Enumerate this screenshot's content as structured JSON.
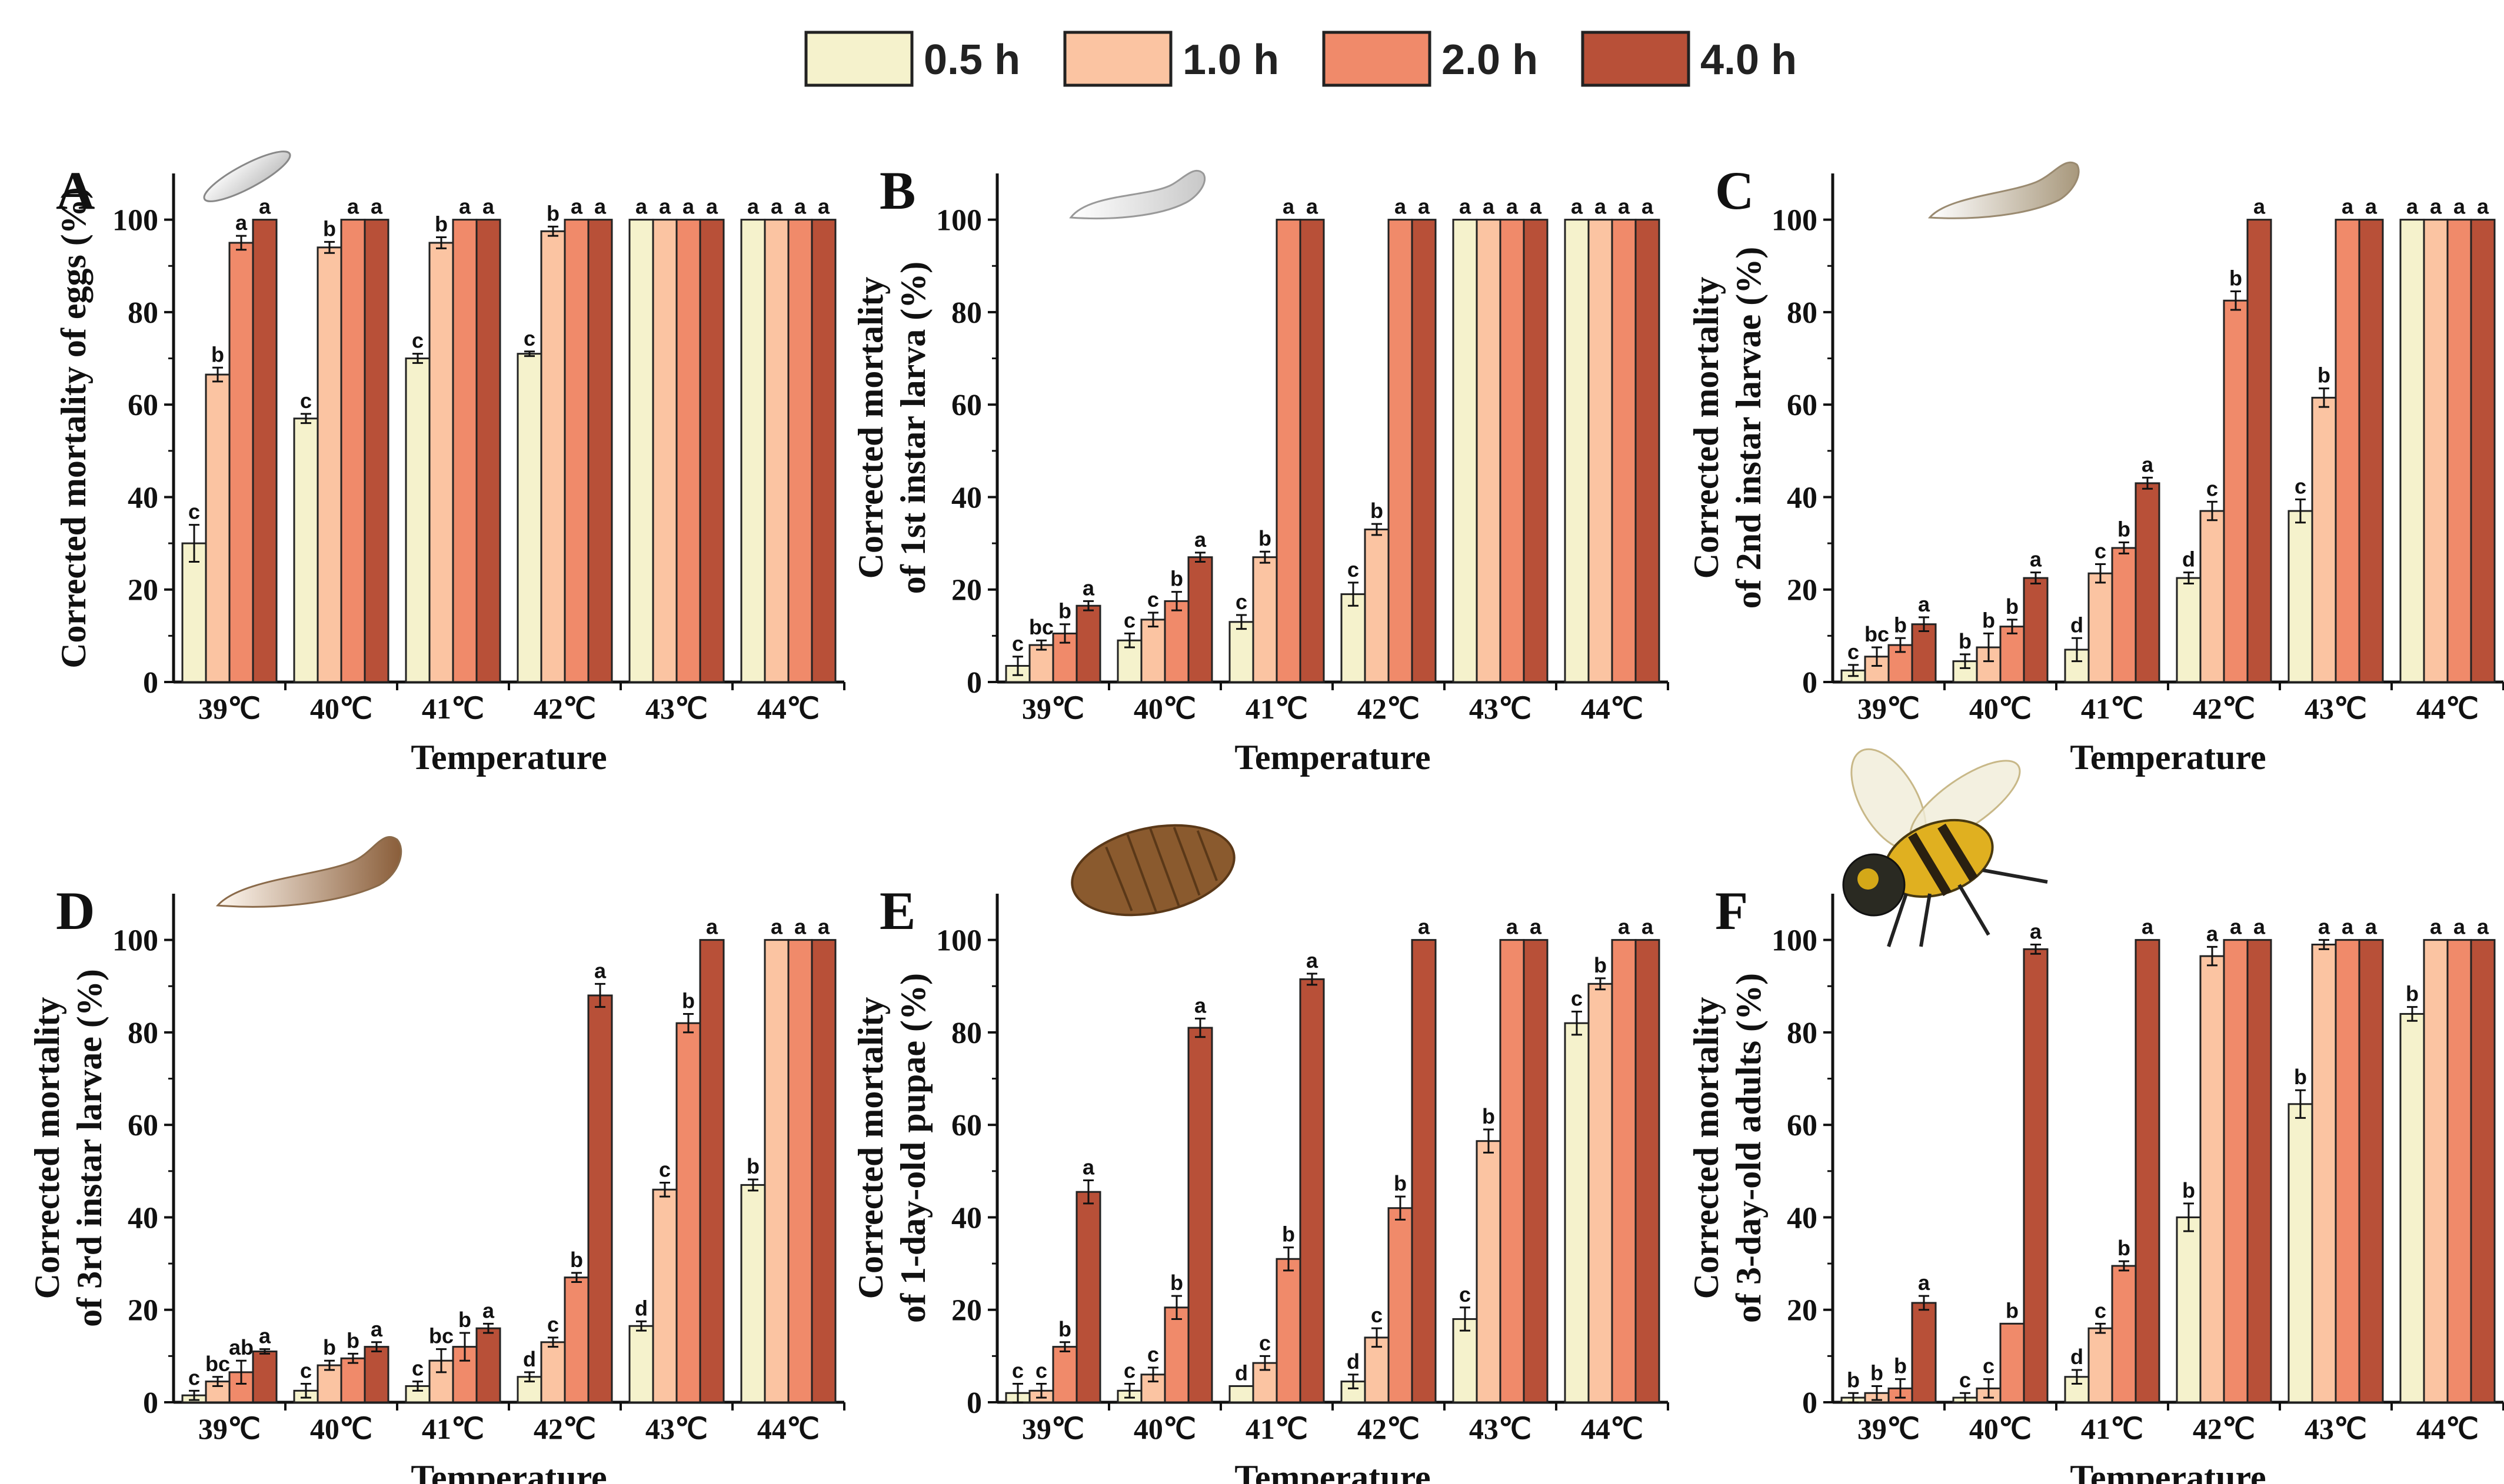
{
  "legend": [
    {
      "label": "0.5 h",
      "color": "#f5f2cc"
    },
    {
      "label": "1.0 h",
      "color": "#fbc4a2"
    },
    {
      "label": "2.0 h",
      "color": "#f08a6a"
    },
    {
      "label": "4.0 h",
      "color": "#b85038"
    }
  ],
  "chart_data": [
    {
      "panel": "A",
      "type": "bar",
      "icon": "egg-icon",
      "ylabel_lines": [
        "Corrected mortality of eggs (%)"
      ],
      "xlabel": "Temperature",
      "categories": [
        "39℃",
        "40℃",
        "41℃",
        "42℃",
        "43℃",
        "44℃"
      ],
      "ylim": [
        0,
        110
      ],
      "yticks": [
        "0",
        "20",
        "40",
        "60",
        "80",
        "100"
      ],
      "series": [
        {
          "name": "0.5 h",
          "values": [
            30,
            57,
            70,
            71,
            100,
            100
          ],
          "errors": [
            4,
            1,
            1,
            0.5,
            0,
            0
          ],
          "sig": [
            "c",
            "c",
            "c",
            "c",
            "a",
            "a"
          ]
        },
        {
          "name": "1.0 h",
          "values": [
            66.5,
            94,
            95,
            97.5,
            100,
            100
          ],
          "errors": [
            1.5,
            1.2,
            1.2,
            1,
            0,
            0
          ],
          "sig": [
            "b",
            "b",
            "b",
            "b",
            "a",
            "a"
          ]
        },
        {
          "name": "2.0 h",
          "values": [
            95,
            100,
            100,
            100,
            100,
            100
          ],
          "errors": [
            1.5,
            0,
            0,
            0,
            0,
            0
          ],
          "sig": [
            "a",
            "a",
            "a",
            "a",
            "a",
            "a"
          ]
        },
        {
          "name": "4.0 h",
          "values": [
            100,
            100,
            100,
            100,
            100,
            100
          ],
          "errors": [
            0,
            0,
            0,
            0,
            0,
            0
          ],
          "sig": [
            "a",
            "a",
            "a",
            "a",
            "a",
            "a"
          ]
        }
      ]
    },
    {
      "panel": "B",
      "type": "bar",
      "icon": "first-instar-larva-icon",
      "ylabel_lines": [
        "Corrected mortality",
        "of 1st instar larva (%)"
      ],
      "xlabel": "Temperature",
      "categories": [
        "39℃",
        "40℃",
        "41℃",
        "42℃",
        "43℃",
        "44℃"
      ],
      "ylim": [
        0,
        110
      ],
      "yticks": [
        "0",
        "20",
        "40",
        "60",
        "80",
        "100"
      ],
      "series": [
        {
          "name": "0.5 h",
          "values": [
            3.5,
            9,
            13,
            19,
            100,
            100
          ],
          "errors": [
            2,
            1.5,
            1.5,
            2.5,
            0,
            0
          ],
          "sig": [
            "c",
            "c",
            "c",
            "c",
            "a",
            "a"
          ]
        },
        {
          "name": "1.0 h",
          "values": [
            8,
            13.5,
            27,
            33,
            100,
            100
          ],
          "errors": [
            1,
            1.5,
            1.2,
            1.2,
            0,
            0
          ],
          "sig": [
            "bc",
            "c",
            "b",
            "b",
            "a",
            "a"
          ]
        },
        {
          "name": "2.0 h",
          "values": [
            10.5,
            17.5,
            100,
            100,
            100,
            100
          ],
          "errors": [
            2,
            2,
            0,
            0,
            0,
            0
          ],
          "sig": [
            "b",
            "b",
            "a",
            "a",
            "a",
            "a"
          ]
        },
        {
          "name": "4.0 h",
          "values": [
            16.5,
            27,
            100,
            100,
            100,
            100
          ],
          "errors": [
            1,
            1,
            0,
            0,
            0,
            0
          ],
          "sig": [
            "a",
            "a",
            "a",
            "a",
            "a",
            "a"
          ]
        }
      ]
    },
    {
      "panel": "C",
      "type": "bar",
      "icon": "second-instar-larva-icon",
      "ylabel_lines": [
        "Corrected mortality",
        "of 2nd instar larvae (%)"
      ],
      "xlabel": "Temperature",
      "categories": [
        "39℃",
        "40℃",
        "41℃",
        "42℃",
        "43℃",
        "44℃"
      ],
      "ylim": [
        0,
        110
      ],
      "yticks": [
        "0",
        "20",
        "40",
        "60",
        "80",
        "100"
      ],
      "series": [
        {
          "name": "0.5 h",
          "values": [
            2.5,
            4.5,
            7,
            22.5,
            37,
            100
          ],
          "errors": [
            1.2,
            1.5,
            2.5,
            1.2,
            2.5,
            0
          ],
          "sig": [
            "c",
            "b",
            "d",
            "d",
            "c",
            "a"
          ]
        },
        {
          "name": "1.0 h",
          "values": [
            5.5,
            7.5,
            23.5,
            37,
            61.5,
            100
          ],
          "errors": [
            2,
            3,
            2,
            2,
            2,
            0
          ],
          "sig": [
            "bc",
            "b",
            "c",
            "c",
            "b",
            "a"
          ]
        },
        {
          "name": "2.0 h",
          "values": [
            8,
            12,
            29,
            82.5,
            100,
            100
          ],
          "errors": [
            1.5,
            1.5,
            1.2,
            2,
            0,
            0
          ],
          "sig": [
            "b",
            "b",
            "b",
            "b",
            "a",
            "a"
          ]
        },
        {
          "name": "4.0 h",
          "values": [
            12.5,
            22.5,
            43,
            100,
            100,
            100
          ],
          "errors": [
            1.5,
            1.2,
            1.2,
            0,
            0,
            0
          ],
          "sig": [
            "a",
            "a",
            "a",
            "a",
            "a",
            "a"
          ]
        }
      ]
    },
    {
      "panel": "D",
      "type": "bar",
      "icon": "third-instar-larva-icon",
      "ylabel_lines": [
        "Corrected mortality",
        "of 3rd instar larvae (%)"
      ],
      "xlabel": "Temperature",
      "categories": [
        "39℃",
        "40℃",
        "41℃",
        "42℃",
        "43℃",
        "44℃"
      ],
      "ylim": [
        0,
        110
      ],
      "yticks": [
        "0",
        "20",
        "40",
        "60",
        "80",
        "100"
      ],
      "series": [
        {
          "name": "0.5 h",
          "values": [
            1.5,
            2.5,
            3.5,
            5.5,
            16.5,
            47
          ],
          "errors": [
            1,
            1.5,
            1,
            1,
            1,
            1.2
          ],
          "sig": [
            "c",
            "c",
            "c",
            "d",
            "d",
            "b"
          ]
        },
        {
          "name": "1.0 h",
          "values": [
            4.5,
            8,
            9,
            13,
            46,
            100
          ],
          "errors": [
            1,
            1,
            2.5,
            1,
            1.5,
            0
          ],
          "sig": [
            "bc",
            "b",
            "bc",
            "c",
            "c",
            "a"
          ]
        },
        {
          "name": "2.0 h",
          "values": [
            6.5,
            9.5,
            12,
            27,
            82,
            100
          ],
          "errors": [
            2.5,
            1,
            3,
            1,
            2,
            0
          ],
          "sig": [
            "ab",
            "b",
            "b",
            "b",
            "b",
            "a"
          ]
        },
        {
          "name": "4.0 h",
          "values": [
            11,
            12,
            16,
            88,
            100,
            100
          ],
          "errors": [
            0.5,
            1,
            1,
            2.5,
            0,
            0
          ],
          "sig": [
            "a",
            "a",
            "a",
            "a",
            "a",
            "a"
          ]
        }
      ]
    },
    {
      "panel": "E",
      "type": "bar",
      "icon": "pupa-icon",
      "ylabel_lines": [
        "Corrected mortality",
        "of 1-day-old pupae (%)"
      ],
      "xlabel": "Temperature",
      "categories": [
        "39℃",
        "40℃",
        "41℃",
        "42℃",
        "43℃",
        "44℃"
      ],
      "ylim": [
        0,
        110
      ],
      "yticks": [
        "0",
        "20",
        "40",
        "60",
        "80",
        "100"
      ],
      "series": [
        {
          "name": "0.5 h",
          "values": [
            2,
            2.5,
            3.5,
            4.5,
            18,
            82
          ],
          "errors": [
            2,
            1.5,
            0,
            1.5,
            2.5,
            2.5
          ],
          "sig": [
            "c",
            "c",
            "d",
            "d",
            "c",
            "c"
          ]
        },
        {
          "name": "1.0 h",
          "values": [
            2.5,
            6,
            8.5,
            14,
            56.5,
            90.5
          ],
          "errors": [
            1.5,
            1.5,
            1.5,
            2,
            2.5,
            1.2
          ],
          "sig": [
            "c",
            "c",
            "c",
            "c",
            "b",
            "b"
          ]
        },
        {
          "name": "2.0 h",
          "values": [
            12,
            20.5,
            31,
            42,
            100,
            100
          ],
          "errors": [
            1,
            2.5,
            2.5,
            2.5,
            0,
            0
          ],
          "sig": [
            "b",
            "b",
            "b",
            "b",
            "a",
            "a"
          ]
        },
        {
          "name": "4.0 h",
          "values": [
            45.5,
            81,
            91.5,
            100,
            100,
            100
          ],
          "errors": [
            2.5,
            2,
            1.2,
            0,
            0,
            0
          ],
          "sig": [
            "a",
            "a",
            "a",
            "a",
            "a",
            "a"
          ]
        }
      ]
    },
    {
      "panel": "F",
      "type": "bar",
      "icon": "adult-fly-icon",
      "ylabel_lines": [
        "Corrected mortality",
        "of 3-day-old adults (%)"
      ],
      "xlabel": "Temperature",
      "categories": [
        "39℃",
        "40℃",
        "41℃",
        "42℃",
        "43℃",
        "44℃"
      ],
      "ylim": [
        0,
        110
      ],
      "yticks": [
        "0",
        "20",
        "40",
        "60",
        "80",
        "100"
      ],
      "series": [
        {
          "name": "0.5 h",
          "values": [
            1,
            1,
            5.5,
            40,
            64.5,
            84
          ],
          "errors": [
            1,
            1,
            1.5,
            3,
            3,
            1.5
          ],
          "sig": [
            "b",
            "c",
            "d",
            "b",
            "b",
            "b"
          ]
        },
        {
          "name": "1.0 h",
          "values": [
            2,
            3,
            16,
            96.5,
            99,
            100
          ],
          "errors": [
            1.5,
            2,
            1,
            2,
            1,
            0
          ],
          "sig": [
            "b",
            "c",
            "c",
            "a",
            "a",
            "a"
          ]
        },
        {
          "name": "2.0 h",
          "values": [
            3,
            17,
            29.5,
            100,
            100,
            100
          ],
          "errors": [
            2,
            0,
            1,
            0,
            0,
            0
          ],
          "sig": [
            "b",
            "b",
            "b",
            "a",
            "a",
            "a"
          ]
        },
        {
          "name": "4.0 h",
          "values": [
            21.5,
            98,
            100,
            100,
            100,
            100
          ],
          "errors": [
            1.5,
            1,
            0,
            0,
            0,
            0
          ],
          "sig": [
            "a",
            "a",
            "a",
            "a",
            "a",
            "a"
          ]
        }
      ]
    }
  ]
}
